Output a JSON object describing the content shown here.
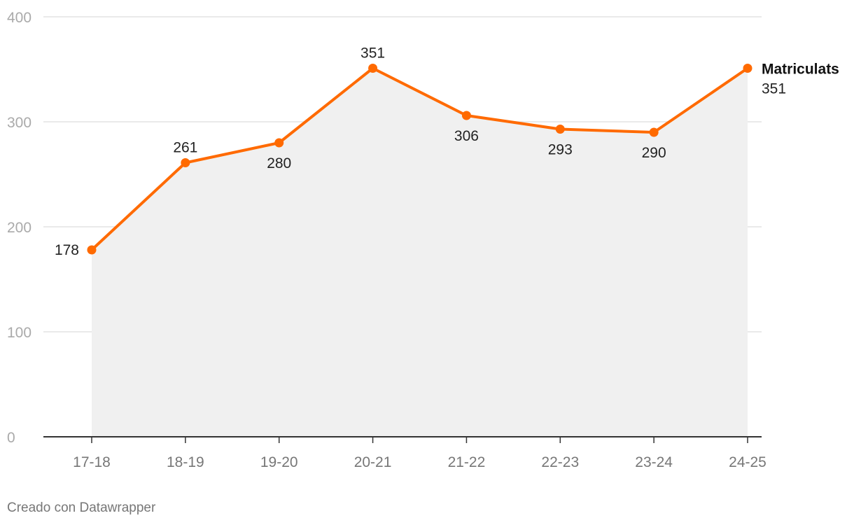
{
  "chart_data": {
    "type": "area",
    "categories": [
      "17-18",
      "18-19",
      "19-20",
      "20-21",
      "21-22",
      "22-23",
      "23-24",
      "24-25"
    ],
    "series": [
      {
        "name": "Matriculats",
        "values": [
          178,
          261,
          280,
          351,
          306,
          293,
          290,
          351
        ]
      }
    ],
    "data_labels": [
      "178",
      "261",
      "280",
      "351",
      "306",
      "293",
      "290"
    ],
    "end_label": {
      "name": "Matriculats",
      "value": "351"
    },
    "ylim": [
      0,
      400
    ],
    "yticks": [
      "0",
      "100",
      "200",
      "300",
      "400"
    ],
    "ytick_values": [
      0,
      100,
      200,
      300,
      400
    ],
    "grid": true,
    "colors": {
      "line": "#ff6a00",
      "area": "#f0f0f0",
      "grid": "#e3e3e3",
      "axis": "#333333"
    }
  },
  "footer": {
    "credit": "Creado con Datawrapper"
  }
}
